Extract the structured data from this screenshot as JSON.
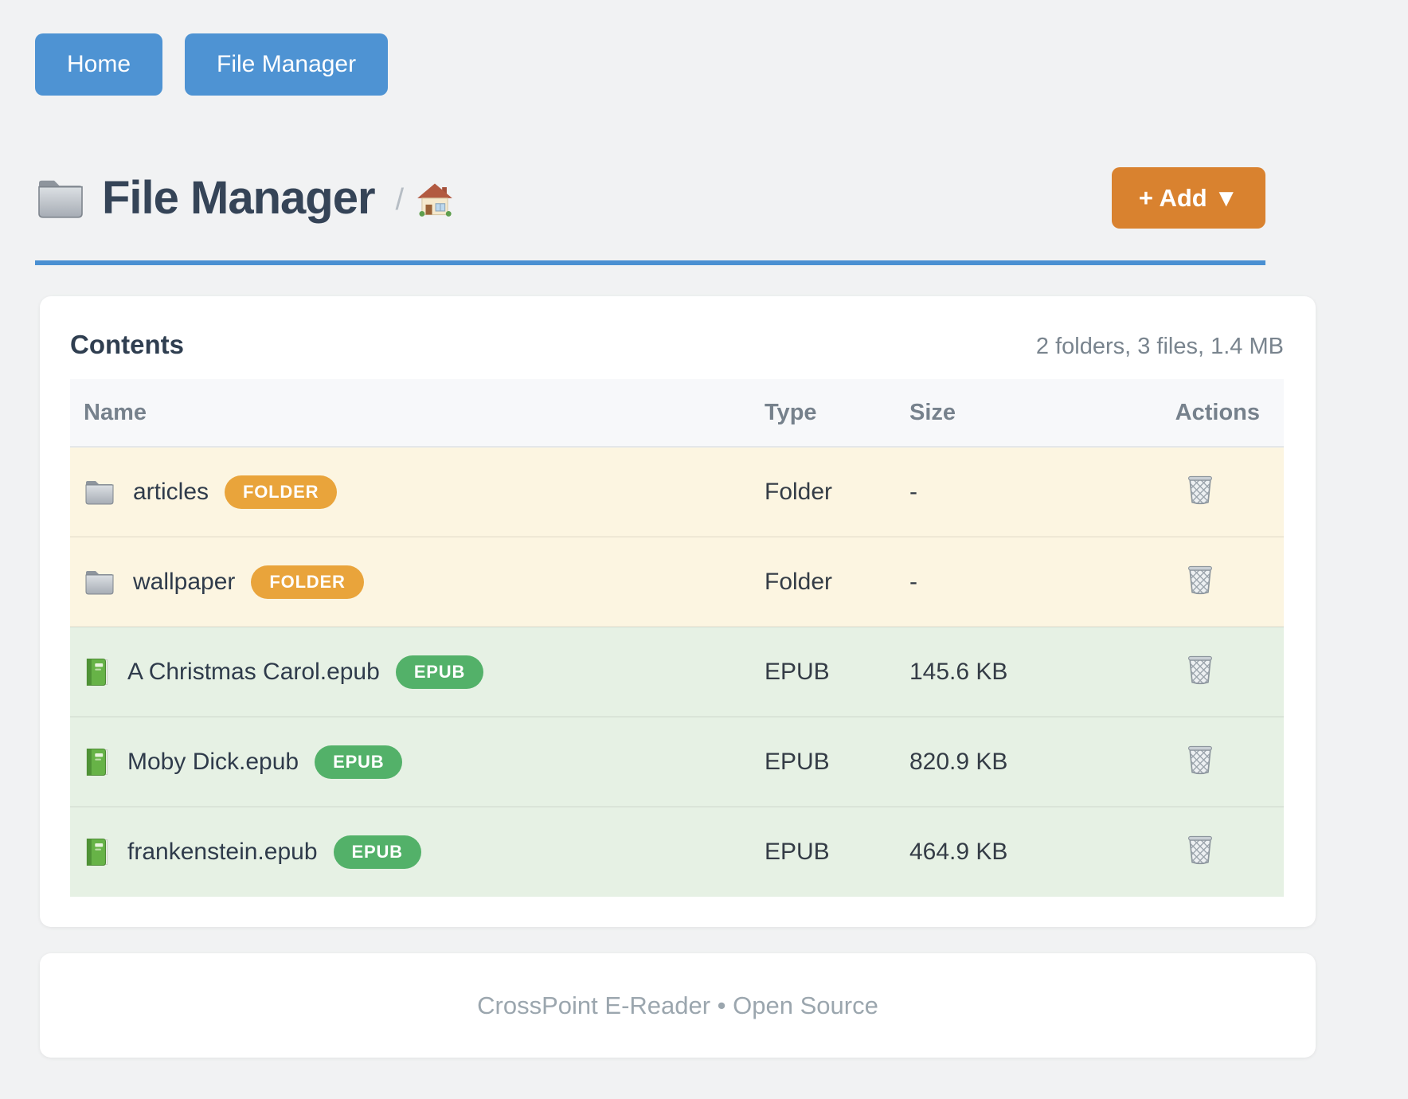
{
  "nav": {
    "buttons": [
      {
        "label": "Home"
      },
      {
        "label": "File Manager"
      }
    ]
  },
  "header": {
    "title": "File Manager",
    "title_icon": "folder-icon",
    "breadcrumb_separator": "/",
    "breadcrumb_home_icon": "house-icon",
    "add_button_label": "+ Add ▼"
  },
  "contents_panel": {
    "heading": "Contents",
    "summary": "2 folders, 3 files, 1.4 MB",
    "table": {
      "columns": [
        "Name",
        "Type",
        "Size",
        "Actions"
      ],
      "row_action_icon": "trash-icon",
      "rows": [
        {
          "name": "articles",
          "kind": "folder",
          "icon": "folder-icon",
          "badge": "FOLDER",
          "type": "Folder",
          "size": "-"
        },
        {
          "name": "wallpaper",
          "kind": "folder",
          "icon": "folder-icon",
          "badge": "FOLDER",
          "type": "Folder",
          "size": "-"
        },
        {
          "name": "A Christmas Carol.epub",
          "kind": "epub",
          "icon": "book-icon",
          "badge": "EPUB",
          "type": "EPUB",
          "size": "145.6 KB"
        },
        {
          "name": "Moby Dick.epub",
          "kind": "epub",
          "icon": "book-icon",
          "badge": "EPUB",
          "type": "EPUB",
          "size": "820.9 KB"
        },
        {
          "name": "frankenstein.epub",
          "kind": "epub",
          "icon": "book-icon",
          "badge": "EPUB",
          "type": "EPUB",
          "size": "464.9 KB"
        }
      ]
    }
  },
  "footer": {
    "text": "CrossPoint E-Reader • Open Source"
  },
  "colors": {
    "page_bg": "#F1F2F3",
    "card_bg": "#FFFFFF",
    "nav_button_bg": "#4E93D3",
    "title_rule": "#4A90D2",
    "heading_text": "#354457",
    "add_button_bg": "#D9822F",
    "folder_badge_bg": "#E9A43B",
    "epub_badge_bg": "#53B169",
    "folder_row_bg": "#FCF5E1",
    "epub_row_bg": "#E6F1E4",
    "table_head_bg": "#F7F8FA",
    "table_head_text": "#76818C",
    "cell_text": "#343C46",
    "summary_text": "#79848E",
    "footer_text": "#9BA6AE"
  }
}
